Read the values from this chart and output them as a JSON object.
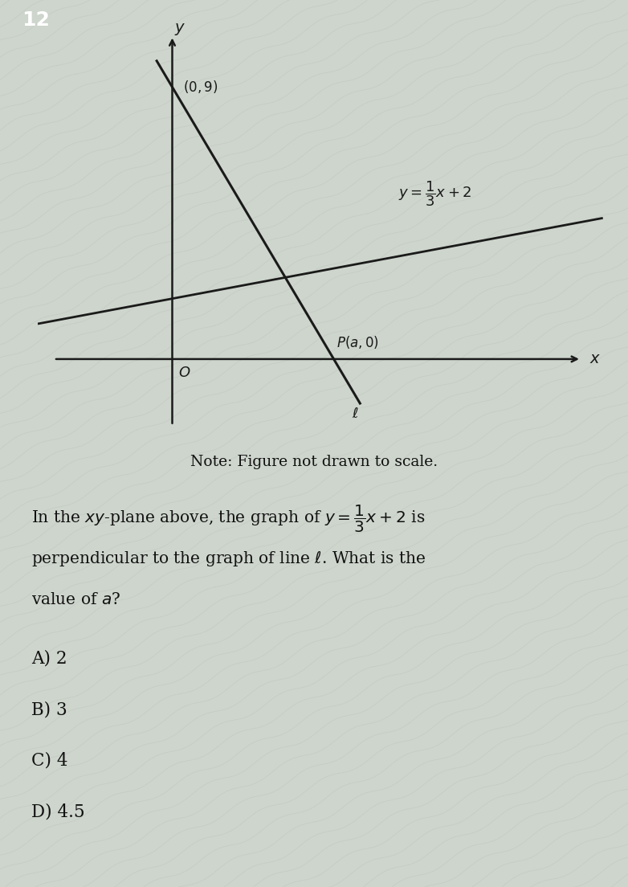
{
  "bg_color": "#cdd5cc",
  "question_number": "12",
  "question_num_bg": "#1a1a1a",
  "question_num_color": "#ffffff",
  "fig_note": "Note: Figure not drawn to scale.",
  "axis_color": "#1a1a1a",
  "line_color": "#1a1a1a",
  "graph_bg": "#cdd5cc",
  "wave_color": "#bcc4bb",
  "choices": [
    "A) 2",
    "B) 3",
    "C) 4",
    "D) 4.5"
  ]
}
